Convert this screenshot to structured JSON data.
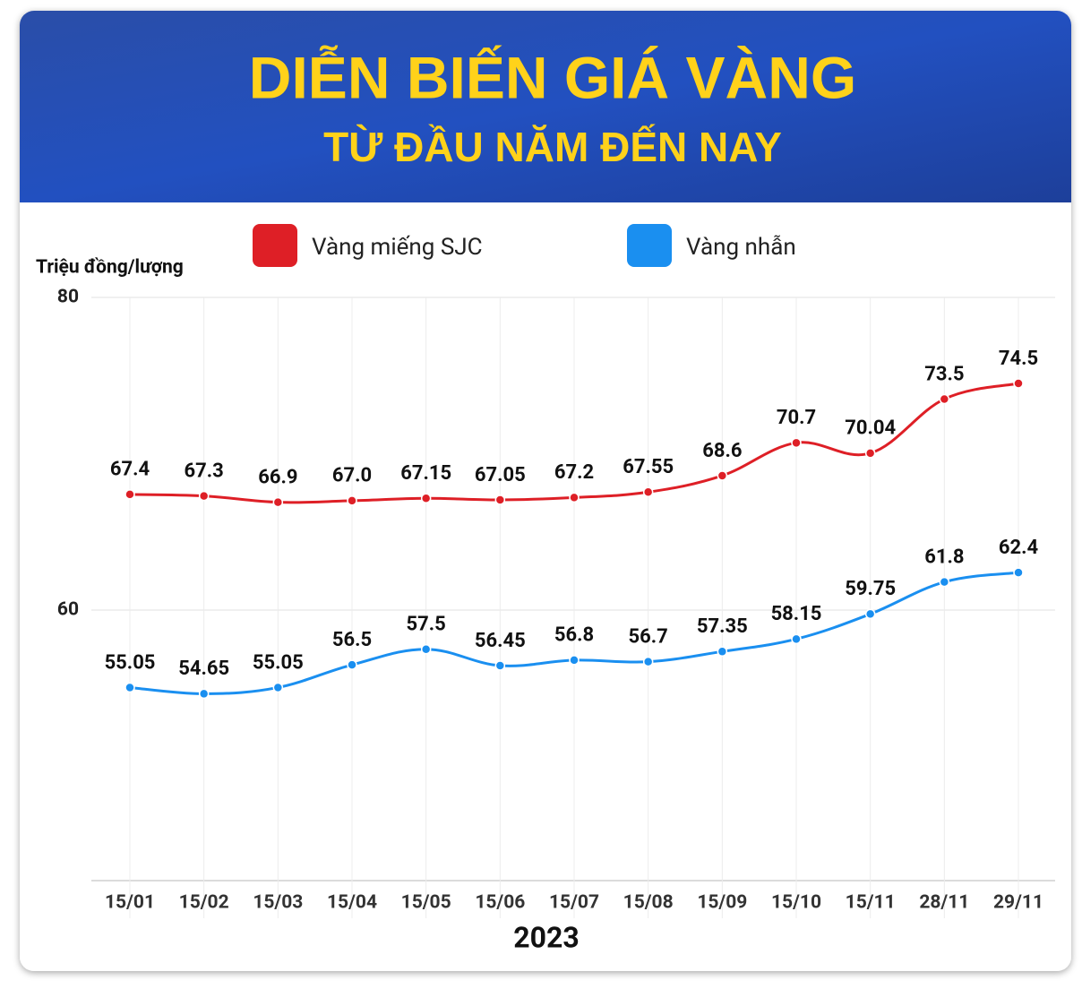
{
  "chart_data": {
    "type": "line",
    "title": "DIỄN BIẾN GIÁ VÀNG",
    "subtitle": "TỪ ĐẦU NĂM ĐẾN NAY",
    "y_label": "Triệu đồng/lượng",
    "x_label": "2023",
    "categories": [
      "15/01",
      "15/02",
      "15/03",
      "15/04",
      "15/05",
      "15/06",
      "15/07",
      "15/08",
      "15/09",
      "15/10",
      "15/11",
      "28/11",
      "29/11"
    ],
    "series": [
      {
        "name": "Vàng miếng SJC",
        "color": "#de1f26",
        "values": [
          67.4,
          67.3,
          66.9,
          67.0,
          67.15,
          67.05,
          67.2,
          67.55,
          68.6,
          70.7,
          70.04,
          73.5,
          74.5
        ],
        "value_labels": [
          "67.4",
          "67.3",
          "66.9",
          "67.0",
          "67.15",
          "67.05",
          "67.2",
          "67.55",
          "68.6",
          "70.7",
          "70.04",
          "73.5",
          "74.5"
        ]
      },
      {
        "name": "Vàng nhẫn",
        "color": "#1a8ff0",
        "values": [
          55.05,
          54.65,
          55.05,
          56.5,
          57.5,
          56.45,
          56.8,
          56.7,
          57.35,
          58.15,
          59.75,
          61.8,
          62.4
        ],
        "value_labels": [
          "55.05",
          "54.65",
          "55.05",
          "56.5",
          "57.5",
          "56.45",
          "56.8",
          "56.7",
          "57.35",
          "58.15",
          "59.75",
          "61.8",
          "62.4"
        ]
      }
    ],
    "ylim": [
      42.7,
      80
    ],
    "yticks": [
      60,
      80
    ],
    "grid": true
  }
}
